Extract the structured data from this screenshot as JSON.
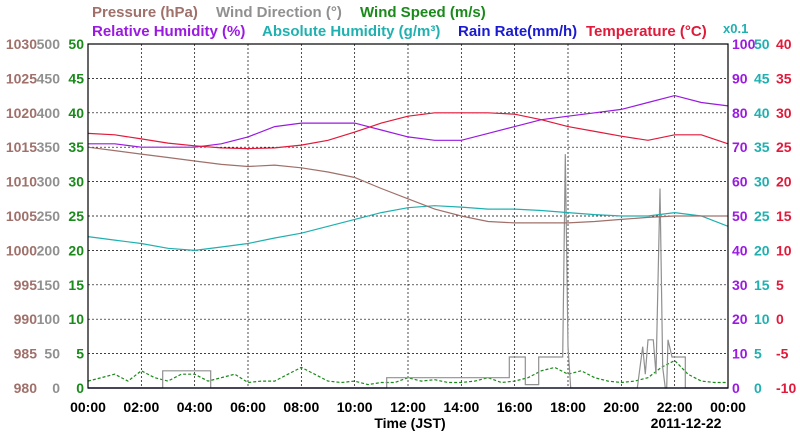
{
  "chart_data": {
    "type": "line",
    "date": "2011-12-22",
    "xlabel": "Time (JST)",
    "x_ticks": [
      "00:00",
      "02:00",
      "04:00",
      "06:00",
      "08:00",
      "10:00",
      "12:00",
      "14:00",
      "16:00",
      "18:00",
      "20:00",
      "22:00",
      "00:00"
    ],
    "x_range_hours": [
      0,
      24
    ],
    "grid": true,
    "legend": {
      "line1": [
        {
          "key": "pressure",
          "text": "Pressure (hPa)",
          "color": "#a0706a"
        },
        {
          "key": "wind_dir",
          "text": "Wind Direction (°)",
          "color": "#909090"
        },
        {
          "key": "wind_speed",
          "text": "Wind Speed (m/s)",
          "color": "#1a8a1a"
        }
      ],
      "line2": [
        {
          "key": "rh",
          "text": "Relative Humidity (%)",
          "color": "#9a1ae0"
        },
        {
          "key": "ah",
          "text": "Absolute Humidity (g/m³)",
          "color": "#20b0b0"
        },
        {
          "key": "rain",
          "text": "Rain Rate(mm/h)",
          "color": "#1a1ad0"
        },
        {
          "key": "temp",
          "text": "Temperature (°C)",
          "color": "#e01a3a"
        }
      ],
      "x01": "x0.1"
    },
    "axes": {
      "pressure": {
        "color": "#a0706a",
        "min": 980,
        "max": 1030,
        "ticks": [
          980,
          985,
          990,
          995,
          1000,
          1005,
          1010,
          1015,
          1020,
          1025,
          1030
        ]
      },
      "wind_dir": {
        "color": "#909090",
        "min": 0,
        "max": 500,
        "ticks": [
          0,
          50,
          100,
          150,
          200,
          250,
          300,
          350,
          400,
          450,
          500
        ]
      },
      "wind_speed": {
        "color": "#1a8a1a",
        "min": 0,
        "max": 50,
        "ticks": [
          0,
          5,
          10,
          15,
          20,
          25,
          30,
          35,
          40,
          45,
          50
        ]
      },
      "rh": {
        "color": "#9a1ae0",
        "min": 0,
        "max": 100,
        "ticks": [
          0,
          10,
          20,
          30,
          40,
          50,
          60,
          70,
          80,
          90,
          100
        ]
      },
      "ah": {
        "color": "#20b0b0",
        "min": 0,
        "max": 50,
        "ticks": [
          0,
          5,
          10,
          15,
          20,
          25,
          30,
          35,
          40,
          45,
          50
        ]
      },
      "temp": {
        "color": "#e01a3a",
        "min": -10,
        "max": 40,
        "ticks": [
          -10,
          -5,
          0,
          5,
          10,
          15,
          20,
          25,
          30,
          35,
          40
        ]
      }
    },
    "series": [
      {
        "name": "Pressure (hPa)",
        "axis": "pressure",
        "color": "#a0706a",
        "x": [
          0,
          1,
          2,
          3,
          4,
          5,
          6,
          7,
          8,
          9,
          10,
          11,
          12,
          13,
          14,
          15,
          16,
          17,
          18,
          19,
          20,
          21,
          22,
          23,
          24
        ],
        "y": [
          1015,
          1014.5,
          1014,
          1013.5,
          1013,
          1012.5,
          1012.2,
          1012.4,
          1012,
          1011.4,
          1010.6,
          1009,
          1007.5,
          1006,
          1005,
          1004.2,
          1004,
          1004,
          1004,
          1004.2,
          1004.5,
          1004.8,
          1005,
          1005,
          1005
        ]
      },
      {
        "name": "Relative Humidity (%)",
        "axis": "rh",
        "color": "#9a1ae0",
        "x": [
          0,
          1,
          2,
          3,
          4,
          5,
          6,
          7,
          8,
          9,
          10,
          11,
          12,
          13,
          14,
          15,
          16,
          17,
          18,
          19,
          20,
          21,
          22,
          23,
          24
        ],
        "y": [
          71,
          71,
          70,
          70,
          70,
          71,
          73,
          76,
          77,
          77,
          77,
          75,
          73,
          72,
          72,
          74,
          76,
          78,
          79,
          80,
          81,
          83,
          85,
          83,
          82
        ]
      },
      {
        "name": "Absolute Humidity (g/m³)",
        "axis": "ah",
        "color": "#20b0b0",
        "x": [
          0,
          1,
          2,
          3,
          4,
          5,
          6,
          7,
          8,
          9,
          10,
          11,
          12,
          13,
          14,
          15,
          16,
          17,
          18,
          19,
          20,
          21,
          22,
          23,
          24
        ],
        "y": [
          22,
          21.5,
          21,
          20.3,
          20,
          20.5,
          21,
          21.8,
          22.5,
          23.5,
          24.5,
          25.5,
          26.2,
          26.5,
          26.3,
          26,
          26,
          25.8,
          25.5,
          25.2,
          25,
          25,
          25.5,
          25,
          23.5
        ]
      },
      {
        "name": "Temperature (°C)",
        "axis": "temp",
        "color": "#e01a3a",
        "x": [
          0,
          1,
          2,
          3,
          4,
          5,
          6,
          7,
          8,
          9,
          10,
          11,
          12,
          13,
          14,
          15,
          16,
          17,
          18,
          19,
          20,
          21,
          22,
          23,
          24
        ],
        "y": [
          27,
          26.8,
          26.2,
          25.6,
          25.2,
          24.9,
          24.8,
          24.9,
          25.3,
          26,
          27.2,
          28.5,
          29.5,
          30,
          30,
          30,
          29.8,
          29,
          28,
          27.3,
          26.6,
          26,
          26.8,
          26.8,
          25.5
        ]
      },
      {
        "name": "Wind Direction (°)",
        "axis": "wind_dir",
        "color": "#909090",
        "x": [
          0,
          2.8,
          2.8,
          4.6,
          4.6,
          11.2,
          11.2,
          15.8,
          15.8,
          16.4,
          16.4,
          16.9,
          16.9,
          17.8,
          17.9,
          18.0,
          18.1,
          18.2,
          18.2,
          20.4,
          20.6,
          20.8,
          20.9,
          21.0,
          21.2,
          21.3,
          21.45,
          21.55,
          21.65,
          21.7,
          21.75,
          21.9,
          22.4,
          22.4,
          24
        ],
        "y": [
          0,
          0,
          25,
          25,
          0,
          0,
          15,
          15,
          45,
          45,
          5,
          5,
          45,
          45,
          340,
          60,
          0,
          0,
          0,
          0,
          0,
          60,
          20,
          70,
          70,
          20,
          290,
          30,
          0,
          0,
          70,
          45,
          45,
          0,
          0
        ]
      },
      {
        "name": "Wind Speed (m/s)",
        "axis": "wind_speed",
        "color": "#1a8a1a",
        "x": [
          0,
          0.5,
          1,
          1.5,
          2,
          2.5,
          3,
          3.5,
          4,
          4.5,
          5,
          5.5,
          6,
          6.5,
          7,
          7.5,
          8,
          8.5,
          9,
          9.5,
          10,
          10.5,
          11,
          11.5,
          12,
          12.5,
          13,
          13.5,
          14,
          14.5,
          15,
          15.5,
          16,
          16.5,
          17,
          17.5,
          18,
          18.5,
          19,
          19.5,
          20,
          20.5,
          21,
          21.5,
          22,
          22.5,
          23,
          23.5,
          24
        ],
        "y": [
          1,
          1.5,
          2,
          1,
          2.5,
          1.5,
          1,
          2,
          2,
          1,
          1.5,
          2,
          0.8,
          1,
          1,
          2,
          3,
          2,
          1,
          0.8,
          1,
          0.5,
          0.8,
          0.8,
          1.5,
          1,
          1.2,
          0.8,
          0.8,
          1,
          1.5,
          0.8,
          1,
          1.5,
          2.5,
          3,
          2,
          2.5,
          1.5,
          1,
          0.8,
          1,
          1.5,
          3,
          4,
          2,
          1,
          0.8,
          0.8
        ]
      },
      {
        "name": "Rain Rate(mm/h)",
        "axis": "rain",
        "color": "#1a1ad0",
        "x": [
          0,
          24
        ],
        "y": [
          0,
          0
        ]
      }
    ]
  }
}
